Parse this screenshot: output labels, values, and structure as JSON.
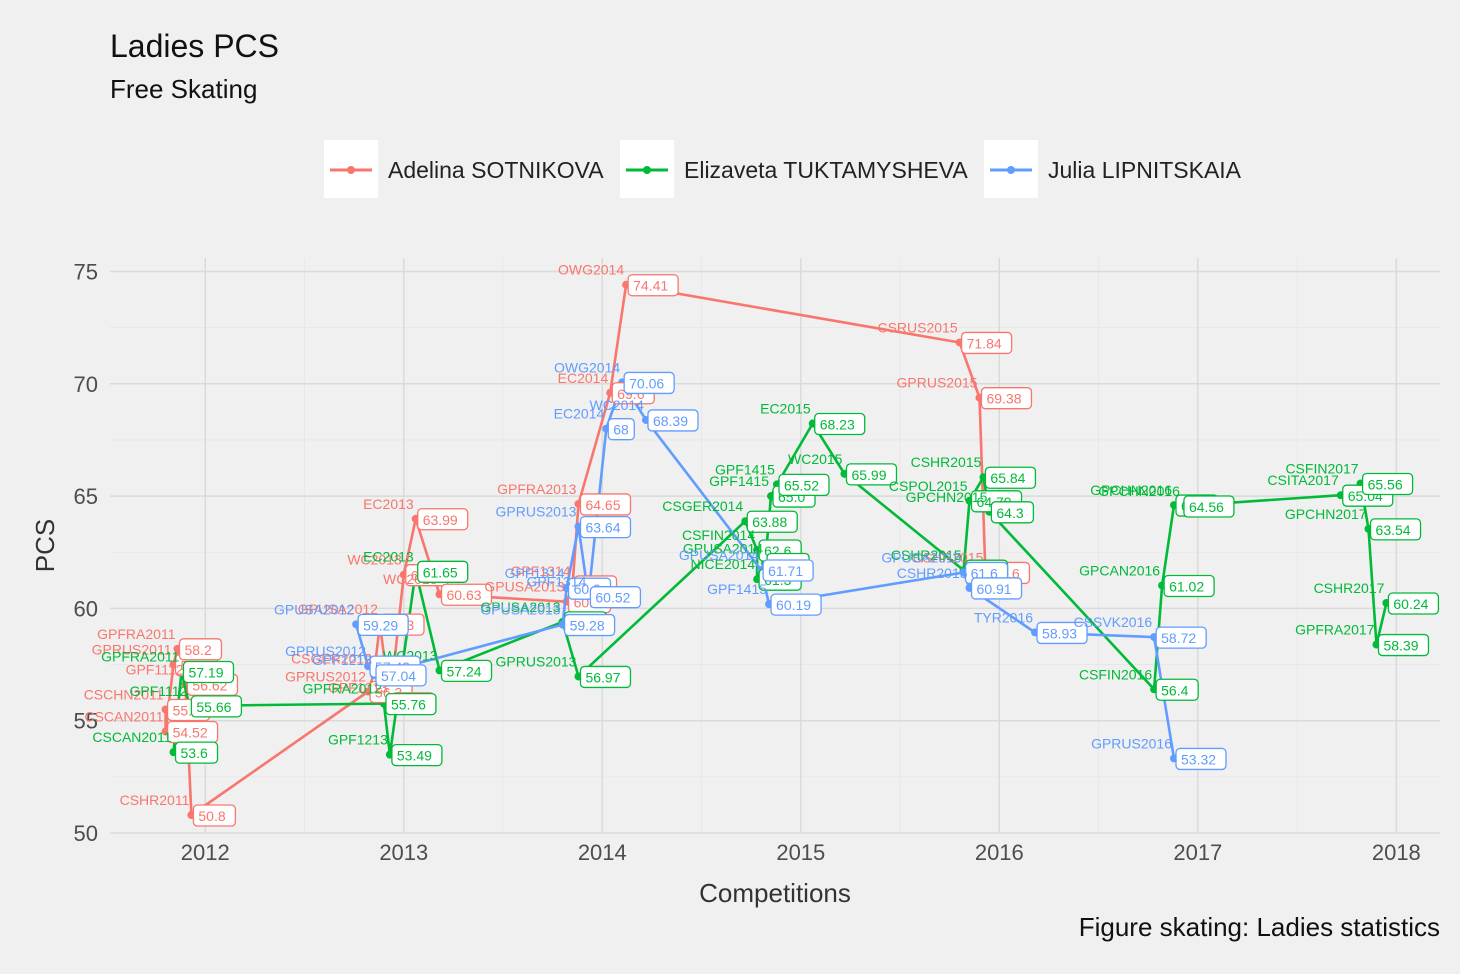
{
  "title": "Ladies PCS",
  "subtitle": "Free Skating",
  "caption": "Figure skating: Ladies statistics",
  "chart_data": {
    "type": "line",
    "title": "Ladies PCS",
    "subtitle": "Free Skating",
    "xlabel": "Competitions",
    "ylabel": "PCS",
    "xlim": [
      2011.52,
      2018.22
    ],
    "ylim": [
      50,
      75.6
    ],
    "xticks": [
      2012,
      2013,
      2014,
      2015,
      2016,
      2017,
      2018
    ],
    "yticks": [
      50,
      55,
      60,
      65,
      70,
      75
    ],
    "grid": true,
    "legend_position": "top",
    "series": [
      {
        "name": "Adelina SOTNIKOVA",
        "color": "#F8766D",
        "points": [
          {
            "x": 2011.8,
            "y": 55.5,
            "label": "CSCHN2011",
            "value": "55.5"
          },
          {
            "x": 2011.8,
            "y": 54.52,
            "label": "CSCAN2011",
            "value": "54.52"
          },
          {
            "x": 2011.84,
            "y": 57.5,
            "label": "GPRUS2011",
            "value": "57.5"
          },
          {
            "x": 2011.86,
            "y": 58.2,
            "label": "GPFRA2011",
            "value": "58.2"
          },
          {
            "x": 2011.9,
            "y": 56.62,
            "label": "GPF1112",
            "value": "56.62"
          },
          {
            "x": 2011.93,
            "y": 50.8,
            "label": "CSHR2011",
            "value": "50.8"
          },
          {
            "x": 2012.82,
            "y": 56.3,
            "label": "GPRUS2012",
            "value": "56.3"
          },
          {
            "x": 2012.85,
            "y": 57.1,
            "label": "CSGER2012",
            "value": "57.1"
          },
          {
            "x": 2012.88,
            "y": 59.3,
            "label": "GPUSA2012",
            "value": "59.3"
          },
          {
            "x": 2012.93,
            "y": 55.8,
            "label": "GPF1213",
            "value": "55.8"
          },
          {
            "x": 2013.0,
            "y": 61.5,
            "label": "WC2013",
            "value": "61.5"
          },
          {
            "x": 2013.06,
            "y": 63.99,
            "label": "EC2013",
            "value": "63.99"
          },
          {
            "x": 2013.18,
            "y": 60.63,
            "label": "WC2013",
            "value": "60.63"
          },
          {
            "x": 2013.82,
            "y": 60.3,
            "label": "GPUSA2013",
            "value": "60.3"
          },
          {
            "x": 2013.85,
            "y": 61.0,
            "label": "GPF1314",
            "value": "61.0"
          },
          {
            "x": 2013.88,
            "y": 64.65,
            "label": "GPFRA2013",
            "value": "64.65"
          },
          {
            "x": 2014.04,
            "y": 69.6,
            "label": "EC2014",
            "value": "69.6"
          },
          {
            "x": 2014.12,
            "y": 74.41,
            "label": "OWG2014",
            "value": "74.41"
          },
          {
            "x": 2015.8,
            "y": 71.84,
            "label": "CSRUS2015",
            "value": "71.84"
          },
          {
            "x": 2015.9,
            "y": 69.38,
            "label": "GPRUS2015",
            "value": "69.38"
          },
          {
            "x": 2015.93,
            "y": 61.6,
            "label": "CSHR2015",
            "value": "61.6"
          }
        ]
      },
      {
        "name": "Elizaveta TUKTAMYSHEVA",
        "color": "#00BA38",
        "points": [
          {
            "x": 2011.84,
            "y": 53.6,
            "label": "CSCAN2011",
            "value": "53.6"
          },
          {
            "x": 2011.88,
            "y": 57.19,
            "label": "GPFRA2011",
            "value": "57.19"
          },
          {
            "x": 2011.92,
            "y": 55.66,
            "label": "GPF1112",
            "value": "55.66"
          },
          {
            "x": 2012.9,
            "y": 55.76,
            "label": "GPFRA2012",
            "value": "55.76"
          },
          {
            "x": 2012.93,
            "y": 53.49,
            "label": "GPF1213",
            "value": "53.49"
          },
          {
            "x": 2013.06,
            "y": 61.65,
            "label": "EC2013",
            "value": "61.65"
          },
          {
            "x": 2013.18,
            "y": 57.24,
            "label": "WC2013",
            "value": "57.24"
          },
          {
            "x": 2013.8,
            "y": 59.4,
            "label": "GPUSA2013",
            "value": "59.4"
          },
          {
            "x": 2013.88,
            "y": 56.97,
            "label": "GPRUS2013",
            "value": "56.97"
          },
          {
            "x": 2014.72,
            "y": 63.88,
            "label": "CSGER2014",
            "value": "63.88"
          },
          {
            "x": 2014.78,
            "y": 62.6,
            "label": "CSFIN2014",
            "value": "62.6"
          },
          {
            "x": 2014.78,
            "y": 61.3,
            "label": "NICE2014",
            "value": "61.3"
          },
          {
            "x": 2014.82,
            "y": 62.0,
            "label": "GPUSA2014",
            "value": "62.0"
          },
          {
            "x": 2014.85,
            "y": 65.0,
            "label": "GPF1415",
            "value": "65.0"
          },
          {
            "x": 2014.88,
            "y": 65.52,
            "label": "GPF1415",
            "value": "65.52"
          },
          {
            "x": 2015.06,
            "y": 68.23,
            "label": "EC2015",
            "value": "68.23"
          },
          {
            "x": 2015.22,
            "y": 65.99,
            "label": "WC2015",
            "value": "65.99"
          },
          {
            "x": 2015.82,
            "y": 61.7,
            "label": "CSHR2015",
            "value": "61.7"
          },
          {
            "x": 2015.85,
            "y": 64.79,
            "label": "CSPOL2015",
            "value": "64.79"
          },
          {
            "x": 2015.92,
            "y": 65.84,
            "label": "CSHR2015",
            "value": "65.84"
          },
          {
            "x": 2015.95,
            "y": 64.3,
            "label": "GPCHN2015",
            "value": "64.3"
          },
          {
            "x": 2016.78,
            "y": 56.4,
            "label": "CSFIN2016",
            "value": "56.4"
          },
          {
            "x": 2016.82,
            "y": 61.02,
            "label": "GPCAN2016",
            "value": "61.02"
          },
          {
            "x": 2016.88,
            "y": 64.6,
            "label": "GPCHN2016",
            "value": "64.6"
          },
          {
            "x": 2016.92,
            "y": 64.56,
            "label": "GPCHN2016",
            "value": "64.56"
          },
          {
            "x": 2017.72,
            "y": 65.04,
            "label": "CSITA2017",
            "value": "65.04"
          },
          {
            "x": 2017.82,
            "y": 65.56,
            "label": "CSFIN2017",
            "value": "65.56"
          },
          {
            "x": 2017.86,
            "y": 63.54,
            "label": "GPCHN2017",
            "value": "63.54"
          },
          {
            "x": 2017.9,
            "y": 58.39,
            "label": "GPFRA2017",
            "value": "58.39"
          },
          {
            "x": 2017.95,
            "y": 60.24,
            "label": "CSHR2017",
            "value": "60.24"
          }
        ]
      },
      {
        "name": "Julia LIPNITSKAIA",
        "color": "#619CFF",
        "points": [
          {
            "x": 2012.76,
            "y": 59.29,
            "label": "GPUSA2012",
            "value": "59.29"
          },
          {
            "x": 2012.82,
            "y": 57.43,
            "label": "GPRUS2012",
            "value": "57.43"
          },
          {
            "x": 2012.85,
            "y": 57.04,
            "label": "GPF1213",
            "value": "57.04"
          },
          {
            "x": 2013.8,
            "y": 59.28,
            "label": "GPUSA2013",
            "value": "59.28"
          },
          {
            "x": 2013.82,
            "y": 60.9,
            "label": "GPF1314",
            "value": "60.9"
          },
          {
            "x": 2013.88,
            "y": 63.64,
            "label": "GPRUS2013",
            "value": "63.64"
          },
          {
            "x": 2013.93,
            "y": 60.52,
            "label": "GPF1314",
            "value": "60.52"
          },
          {
            "x": 2014.02,
            "y": 68.0,
            "label": "EC2014",
            "value": "68"
          },
          {
            "x": 2014.1,
            "y": 70.06,
            "label": "OWG2014",
            "value": "70.06"
          },
          {
            "x": 2014.22,
            "y": 68.39,
            "label": "WC2014",
            "value": "68.39"
          },
          {
            "x": 2014.8,
            "y": 61.71,
            "label": "GPUSA2014",
            "value": "61.71"
          },
          {
            "x": 2014.84,
            "y": 60.19,
            "label": "GPF1415",
            "value": "60.19"
          },
          {
            "x": 2015.82,
            "y": 61.6,
            "label": "GPUSA2015",
            "value": "61.6"
          },
          {
            "x": 2015.85,
            "y": 60.91,
            "label": "CSHR2015",
            "value": "60.91"
          },
          {
            "x": 2016.18,
            "y": 58.93,
            "label": "TYR2016",
            "value": "58.93"
          },
          {
            "x": 2016.78,
            "y": 58.72,
            "label": "CSSVK2016",
            "value": "58.72"
          },
          {
            "x": 2016.88,
            "y": 53.32,
            "label": "GPRUS2016",
            "value": "53.32"
          }
        ]
      }
    ]
  }
}
